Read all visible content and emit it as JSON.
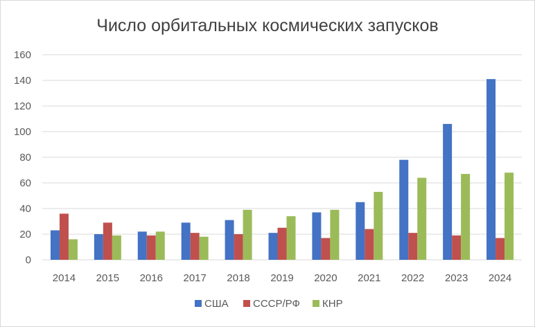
{
  "chart_data": {
    "type": "bar",
    "title": "Число орбитальных космических запусков",
    "xlabel": "",
    "ylabel": "",
    "categories": [
      "2014",
      "2015",
      "2016",
      "2017",
      "2018",
      "2019",
      "2020",
      "2021",
      "2022",
      "2023",
      "2024"
    ],
    "series": [
      {
        "name": "США",
        "color": "#4472c4",
        "values": [
          23,
          20,
          22,
          29,
          31,
          21,
          37,
          45,
          78,
          106,
          141
        ]
      },
      {
        "name": "СССР/РФ",
        "color": "#c0504d",
        "values": [
          36,
          29,
          19,
          21,
          20,
          25,
          17,
          24,
          21,
          19,
          17
        ]
      },
      {
        "name": "КНР",
        "color": "#9bbb59",
        "values": [
          16,
          19,
          22,
          18,
          39,
          34,
          39,
          53,
          64,
          67,
          68
        ]
      }
    ],
    "ylim": [
      0,
      160
    ],
    "yticks": [
      0,
      20,
      40,
      60,
      80,
      100,
      120,
      140,
      160
    ],
    "grid": true,
    "legend_position": "bottom"
  }
}
